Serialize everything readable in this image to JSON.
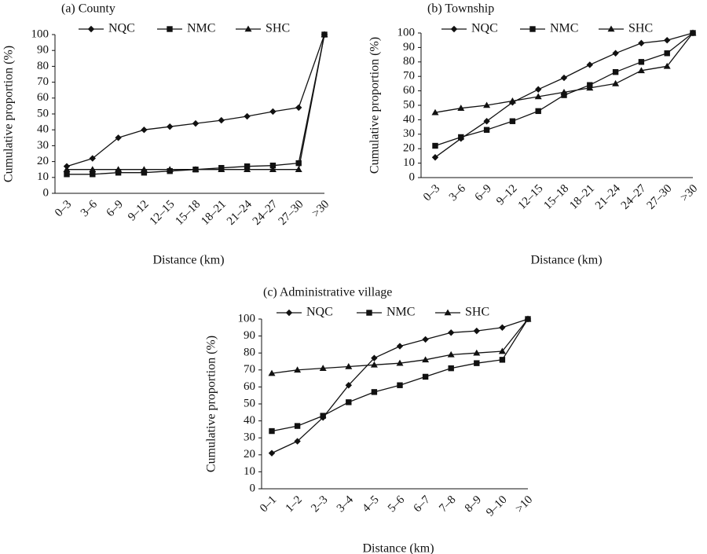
{
  "chart_data": [
    {
      "type": "line",
      "title": "(a) County",
      "xlabel": "Distance (km)",
      "ylabel": "Cumulative proportion (%)",
      "ylim": [
        0,
        100
      ],
      "yticks": [
        0,
        10,
        20,
        30,
        40,
        50,
        60,
        70,
        80,
        90,
        100
      ],
      "grid": false,
      "legend": "top",
      "categories": [
        "0–3",
        "3–6",
        "6–9",
        "9–12",
        "12–15",
        "15–18",
        "18–21",
        "21–24",
        "24–27",
        "27–30",
        ">30"
      ],
      "series": [
        {
          "name": "NQC",
          "marker": "diamond",
          "values": [
            17,
            22,
            35,
            40,
            42,
            44,
            46,
            48.5,
            51.5,
            54,
            100
          ]
        },
        {
          "name": "NMC",
          "marker": "square",
          "values": [
            12,
            12,
            13,
            13,
            14,
            15,
            16,
            17,
            17.5,
            19,
            100
          ]
        },
        {
          "name": "SHC",
          "marker": "triangle",
          "values": [
            15,
            15,
            15,
            15,
            15,
            15,
            15,
            15,
            15,
            15,
            100
          ]
        }
      ]
    },
    {
      "type": "line",
      "title": "(b) Township",
      "xlabel": "Distance (km)",
      "ylabel": "Cumulative proportion (%)",
      "ylim": [
        0,
        100
      ],
      "yticks": [
        0,
        10,
        20,
        30,
        40,
        50,
        60,
        70,
        80,
        90,
        100
      ],
      "grid": false,
      "legend": "top",
      "categories": [
        "0–3",
        "3–6",
        "6–9",
        "9–12",
        "12–15",
        "15–18",
        "18–21",
        "21–24",
        "24–27",
        "27–30",
        ">30"
      ],
      "series": [
        {
          "name": "NQC",
          "marker": "diamond",
          "values": [
            14,
            27,
            39,
            52,
            61,
            69,
            78,
            86,
            93,
            95,
            100
          ]
        },
        {
          "name": "NMC",
          "marker": "square",
          "values": [
            22,
            28,
            33,
            39,
            46,
            57,
            64,
            73,
            80,
            86,
            100
          ]
        },
        {
          "name": "SHC",
          "marker": "triangle",
          "values": [
            45,
            48,
            50,
            53,
            56,
            59,
            62,
            65,
            74,
            77,
            100
          ]
        }
      ]
    },
    {
      "type": "line",
      "title": "(c) Administrative village",
      "xlabel": "Distance (km)",
      "ylabel": "Cumulative proportion (%)",
      "ylim": [
        0,
        100
      ],
      "yticks": [
        0,
        10,
        20,
        30,
        40,
        50,
        60,
        70,
        80,
        90,
        100
      ],
      "grid": false,
      "legend": "top",
      "categories": [
        "0–1",
        "1–2",
        "2–3",
        "3–4",
        "4–5",
        "5–6",
        "6–7",
        "7–8",
        "8–9",
        "9–10",
        ">10"
      ],
      "series": [
        {
          "name": "NQC",
          "marker": "diamond",
          "values": [
            21,
            28,
            42,
            61,
            77,
            84,
            88,
            92,
            93,
            95,
            100
          ]
        },
        {
          "name": "NMC",
          "marker": "square",
          "values": [
            34,
            37,
            43,
            51,
            57,
            61,
            66,
            71,
            74,
            76,
            100
          ]
        },
        {
          "name": "SHC",
          "marker": "triangle",
          "values": [
            68,
            70,
            71,
            72,
            73,
            74,
            76,
            79,
            80,
            81,
            100
          ]
        }
      ]
    }
  ]
}
